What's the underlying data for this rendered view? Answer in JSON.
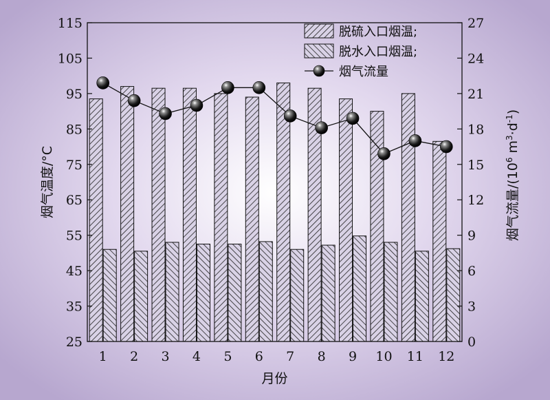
{
  "chart_data": {
    "type": "bar",
    "categories": [
      "1",
      "2",
      "3",
      "4",
      "5",
      "6",
      "7",
      "8",
      "9",
      "10",
      "11",
      "12"
    ],
    "xlabel": "月份",
    "ylabel": "烟气温度/°C",
    "y2label_main": "烟气流量/(10",
    "y2label_sup1": "6",
    "y2label_mid": " m",
    "y2label_sup2": "3",
    "y2label_mid2": "·d",
    "y2label_sup3": "-1",
    "y2label_end": ")",
    "ylim": [
      25,
      115
    ],
    "yticks": [
      25,
      35,
      45,
      55,
      65,
      75,
      85,
      95,
      105,
      115
    ],
    "y2lim": [
      0,
      27
    ],
    "y2ticks": [
      0,
      3,
      6,
      9,
      12,
      15,
      18,
      21,
      24,
      27
    ],
    "grid": false,
    "legend_position": "top-right",
    "series": [
      {
        "name": "脱硫入口烟温;",
        "kind": "bar",
        "axis": "left",
        "hatch": "forward",
        "values": [
          93.5,
          97,
          96.5,
          96.5,
          95,
          94,
          98,
          96.5,
          93.5,
          90,
          95,
          81.5
        ]
      },
      {
        "name": "脱水入口烟温;",
        "kind": "bar",
        "axis": "left",
        "hatch": "backward",
        "values": [
          51,
          50.5,
          53,
          52.5,
          52.5,
          53.2,
          51,
          52.2,
          54.8,
          53,
          50.5,
          51.2
        ]
      },
      {
        "name": "烟气流量",
        "kind": "line",
        "axis": "right",
        "marker": "sphere",
        "values": [
          21.9,
          20.4,
          19.3,
          20.0,
          21.5,
          21.5,
          19.1,
          18.1,
          18.9,
          15.9,
          17.0,
          16.5
        ]
      }
    ]
  }
}
